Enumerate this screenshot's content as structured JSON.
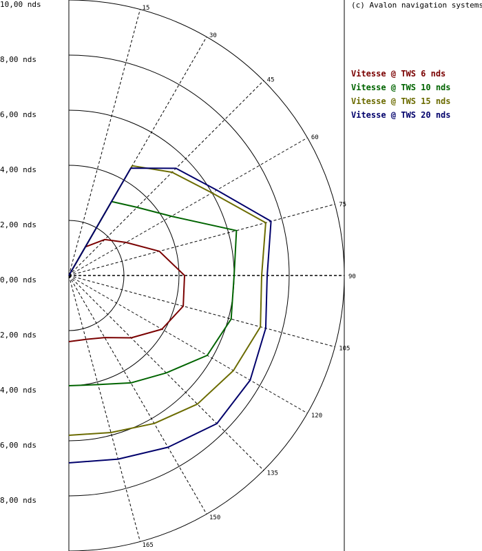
{
  "copyright": "(c) Avalon navigation systems",
  "chart_data": {
    "type": "line",
    "polar": true,
    "radial_unit": "nds",
    "rlim": [
      0,
      10
    ],
    "radial_ticks": [
      2,
      4,
      6,
      8,
      10
    ],
    "y_axis_labels": [
      "10,00 nds",
      "8,00 nds",
      "6,00 nds",
      "4,00 nds",
      "2,00 nds",
      "0,00 nds",
      "2,00 nds",
      "4,00 nds",
      "6,00 nds",
      "8,00 nds"
    ],
    "angle_ticks": [
      15,
      30,
      45,
      60,
      75,
      90,
      105,
      120,
      135,
      150,
      165
    ],
    "legend_position": "top-right",
    "series": [
      {
        "name": "Vitesse @ TWS 6 nds",
        "color": "#7a0000",
        "points": [
          [
            0,
            0
          ],
          [
            30,
            1.2
          ],
          [
            45,
            1.85
          ],
          [
            60,
            2.4
          ],
          [
            75,
            3.4
          ],
          [
            90,
            4.2
          ],
          [
            105,
            4.3
          ],
          [
            120,
            3.9
          ],
          [
            135,
            3.2
          ],
          [
            150,
            2.6
          ],
          [
            165,
            2.4
          ],
          [
            180,
            2.4
          ]
        ]
      },
      {
        "name": "Vitesse @ TWS 10 nds",
        "color": "#006400",
        "points": [
          [
            0,
            0
          ],
          [
            30,
            3.1
          ],
          [
            45,
            3.5
          ],
          [
            60,
            4.3
          ],
          [
            75,
            6.3
          ],
          [
            90,
            6.0
          ],
          [
            105,
            6.1
          ],
          [
            120,
            5.8
          ],
          [
            135,
            5.0
          ],
          [
            150,
            4.5
          ],
          [
            165,
            4.1
          ],
          [
            180,
            4.0
          ]
        ]
      },
      {
        "name": "Vitesse @ TWS 15 nds",
        "color": "#6b6b00",
        "points": [
          [
            0,
            0
          ],
          [
            30,
            4.6
          ],
          [
            45,
            5.3
          ],
          [
            60,
            6.0
          ],
          [
            75,
            7.4
          ],
          [
            90,
            7.0
          ],
          [
            105,
            7.2
          ],
          [
            120,
            6.9
          ],
          [
            135,
            6.6
          ],
          [
            150,
            6.2
          ],
          [
            165,
            5.9
          ],
          [
            180,
            5.8
          ]
        ]
      },
      {
        "name": "Vitesse @ TWS 20 nds",
        "color": "#00006b",
        "points": [
          [
            0,
            0
          ],
          [
            30,
            4.5
          ],
          [
            45,
            5.5
          ],
          [
            60,
            6.2
          ],
          [
            75,
            7.6
          ],
          [
            90,
            7.2
          ],
          [
            105,
            7.4
          ],
          [
            120,
            7.6
          ],
          [
            135,
            7.6
          ],
          [
            150,
            7.2
          ],
          [
            165,
            6.9
          ],
          [
            180,
            6.8
          ]
        ]
      }
    ]
  }
}
